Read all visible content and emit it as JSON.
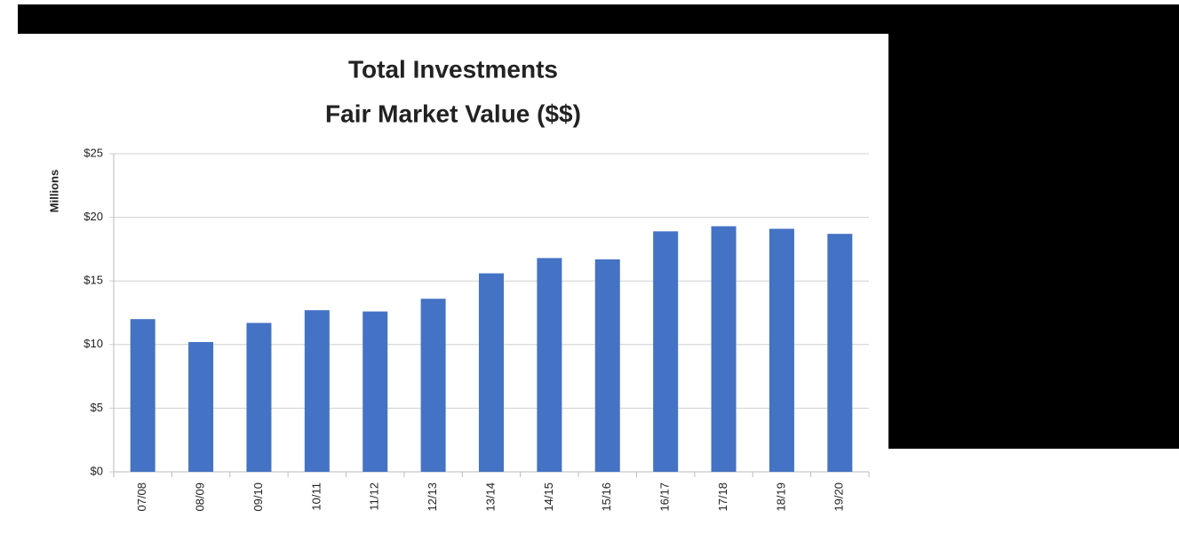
{
  "chart_data": {
    "type": "bar",
    "title": [
      "Total Investments",
      "Fair Market Value ($$)"
    ],
    "y_label": "Millions",
    "categories": [
      "07/08",
      "08/09",
      "09/10",
      "10/11",
      "11/12",
      "12/13",
      "13/14",
      "14/15",
      "15/16",
      "16/17",
      "17/18",
      "18/19",
      "19/20"
    ],
    "values": [
      12.0,
      10.2,
      11.7,
      12.7,
      12.6,
      13.6,
      15.6,
      16.8,
      16.7,
      18.9,
      19.3,
      19.1,
      18.7
    ],
    "color": "#4472c4",
    "ylim": [
      0,
      25
    ],
    "yticks": [
      {
        "value": 0,
        "label": "$0"
      },
      {
        "value": 5,
        "label": "$5"
      },
      {
        "value": 10,
        "label": "$10"
      },
      {
        "value": 15,
        "label": "$15"
      },
      {
        "value": 20,
        "label": "$20"
      },
      {
        "value": 25,
        "label": "$25"
      }
    ],
    "grid": true
  }
}
